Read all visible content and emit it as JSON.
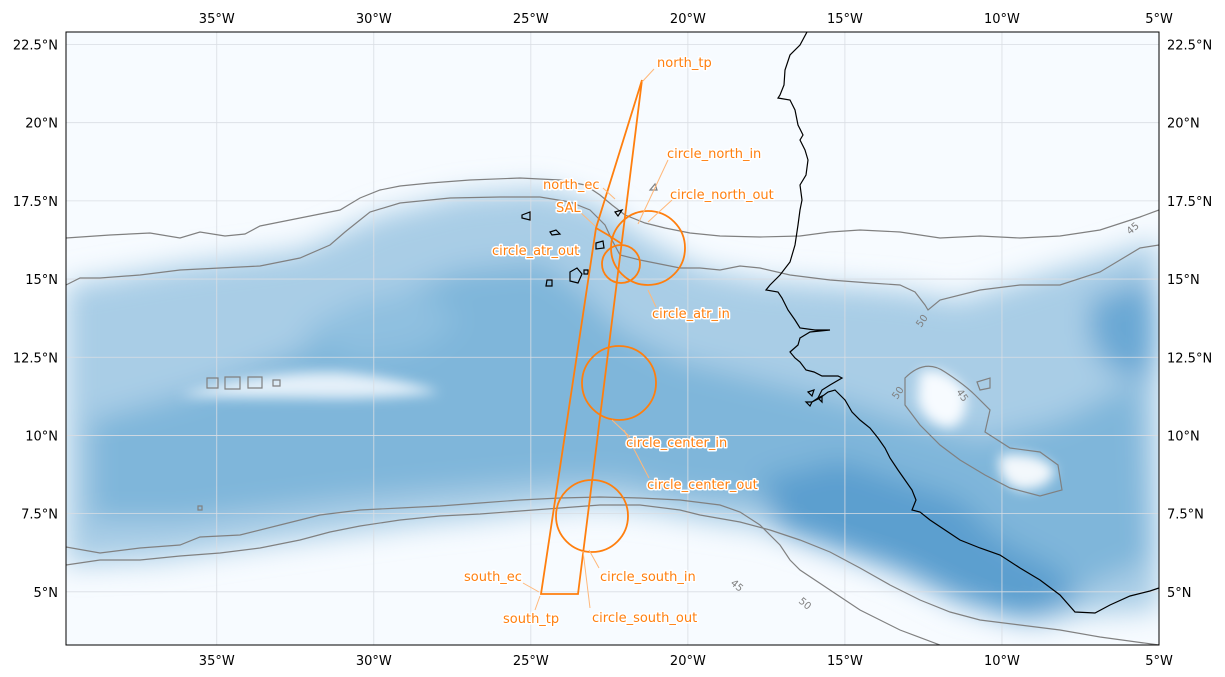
{
  "map": {
    "lon_ticks": [
      "35°W",
      "30°W",
      "25°W",
      "20°W",
      "15°W",
      "10°W",
      "5°W"
    ],
    "lat_ticks": [
      "5°N",
      "7.5°N",
      "10°N",
      "12.5°N",
      "15°N",
      "17.5°N",
      "20°N",
      "22.5°N"
    ],
    "lon_values": [
      -35,
      -30,
      -25,
      -20,
      -15,
      -10,
      -5
    ],
    "lat_values": [
      5,
      7.5,
      10,
      12.5,
      15,
      17.5,
      20,
      22.5
    ],
    "extent": {
      "lon_min": -39.8,
      "lon_max": -5,
      "lat_min": 3.3,
      "lat_max": 22.9
    },
    "contour_labels": [
      "45",
      "50",
      "50",
      "45",
      "45",
      "50"
    ],
    "colors": {
      "flight": "#ff7f0e",
      "coast": "#000000",
      "contour": "#808080",
      "field_high": "#3d85c6"
    }
  },
  "flight_labels": {
    "north_tp": "north_tp",
    "circle_north_in": "circle_north_in",
    "north_ec": "north_ec",
    "circle_north_out": "circle_north_out",
    "sal": "SAL",
    "circle_atr_out": "circle_atr_out",
    "circle_atr_in": "circle_atr_in",
    "circle_center_in": "circle_center_in",
    "circle_center_out": "circle_center_out",
    "south_ec": "south_ec",
    "circle_south_in": "circle_south_in",
    "south_tp": "south_tp",
    "circle_south_out": "circle_south_out"
  }
}
